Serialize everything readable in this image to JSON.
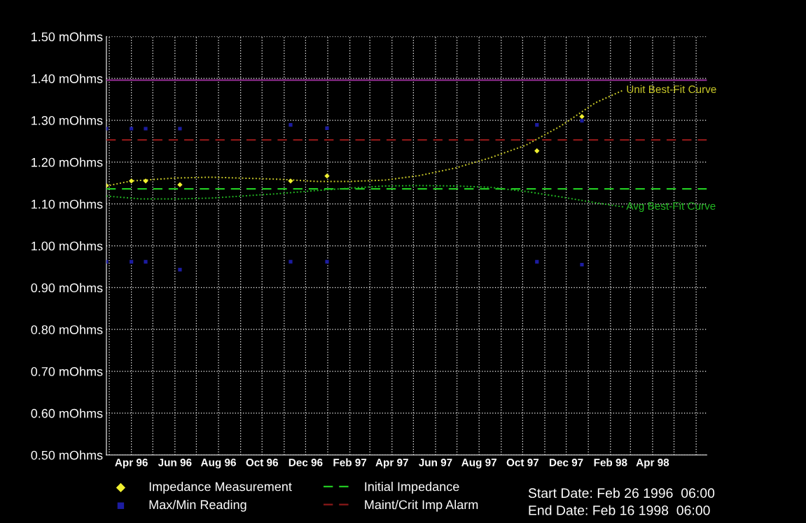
{
  "chart_data": {
    "type": "scatter",
    "xlim": [
      "1996-02-26",
      "1998-06-16"
    ],
    "xticks": [
      {
        "value": "1996-03-01",
        "label": null
      },
      {
        "value": "1996-04-01",
        "label": "Apr 96"
      },
      {
        "value": "1996-05-01",
        "label": null
      },
      {
        "value": "1996-06-01",
        "label": "Jun 96"
      },
      {
        "value": "1996-07-01",
        "label": null
      },
      {
        "value": "1996-08-01",
        "label": "Aug 96"
      },
      {
        "value": "1996-09-01",
        "label": null
      },
      {
        "value": "1996-10-01",
        "label": "Oct 96"
      },
      {
        "value": "1996-11-01",
        "label": null
      },
      {
        "value": "1996-12-01",
        "label": "Dec 96"
      },
      {
        "value": "1997-01-01",
        "label": null
      },
      {
        "value": "1997-02-01",
        "label": "Feb 97"
      },
      {
        "value": "1997-03-01",
        "label": null
      },
      {
        "value": "1997-04-01",
        "label": "Apr 97"
      },
      {
        "value": "1997-05-01",
        "label": null
      },
      {
        "value": "1997-06-01",
        "label": "Jun 97"
      },
      {
        "value": "1997-07-01",
        "label": null
      },
      {
        "value": "1997-08-01",
        "label": "Aug 97"
      },
      {
        "value": "1997-09-01",
        "label": null
      },
      {
        "value": "1997-10-01",
        "label": "Oct 97"
      },
      {
        "value": "1997-11-01",
        "label": null
      },
      {
        "value": "1997-12-01",
        "label": "Dec 97"
      },
      {
        "value": "1998-01-01",
        "label": null
      },
      {
        "value": "1998-02-01",
        "label": "Feb 98"
      },
      {
        "value": "1998-03-01",
        "label": null
      },
      {
        "value": "1998-04-01",
        "label": "Apr 98"
      },
      {
        "value": "1998-05-01",
        "label": null
      },
      {
        "value": "1998-06-01",
        "label": null
      }
    ],
    "ylim": [
      0.5,
      1.5
    ],
    "yticks": [
      {
        "value": 0.5,
        "label": "0.50 mOhms"
      },
      {
        "value": 0.6,
        "label": "0.60 mOhms"
      },
      {
        "value": 0.7,
        "label": "0.70 mOhms"
      },
      {
        "value": 0.8,
        "label": "0.80 mOhms"
      },
      {
        "value": 0.9,
        "label": "0.90 mOhms"
      },
      {
        "value": 1.0,
        "label": "1.00 mOhms"
      },
      {
        "value": 1.1,
        "label": "1.10 mOhms"
      },
      {
        "value": 1.2,
        "label": "1.20 mOhms"
      },
      {
        "value": 1.3,
        "label": "1.30 mOhms"
      },
      {
        "value": 1.4,
        "label": "1.40 mOhms"
      },
      {
        "value": 1.5,
        "label": "1.50 mOhms"
      }
    ],
    "grid": true,
    "legend": "bottom",
    "series": [
      {
        "name": "Impedance Measurement",
        "marker": "diamond",
        "color": "#f0f030",
        "x": [
          "1996-02-26",
          "1996-04-01",
          "1996-04-21",
          "1996-06-08",
          "1996-11-10",
          "1996-12-31",
          "1997-10-21",
          "1997-12-23"
        ],
        "values": [
          1.144,
          1.155,
          1.155,
          1.146,
          1.155,
          1.167,
          1.227,
          1.309
        ]
      },
      {
        "name": "Max/Min Reading",
        "marker": "square",
        "color": "#1c1ca0",
        "x": [
          "1996-02-26",
          "1996-04-01",
          "1996-04-21",
          "1996-06-08",
          "1996-11-10",
          "1996-12-31",
          "1997-10-21",
          "1997-12-23",
          "1996-02-26",
          "1996-04-01",
          "1996-04-21",
          "1996-06-08",
          "1996-11-10",
          "1996-12-31",
          "1997-10-21",
          "1997-12-23"
        ],
        "values": [
          1.28,
          1.28,
          1.28,
          1.28,
          1.289,
          1.281,
          1.289,
          1.299,
          0.962,
          0.962,
          0.962,
          0.943,
          0.962,
          0.962,
          0.962,
          0.955
        ]
      },
      {
        "name": "Unit Best-Fit Curve",
        "type": "line",
        "line_style": "dotted",
        "color": "#c8c828",
        "x": [
          "1996-02-26",
          "1996-04-01",
          "1996-06-02",
          "1996-07-21",
          "1996-10-27",
          "1996-12-15",
          "1997-02-03",
          "1997-03-22",
          "1997-05-10",
          "1997-06-29",
          "1997-08-16",
          "1997-10-05",
          "1997-11-23",
          "1998-01-11",
          "1998-02-19"
        ],
        "values": [
          1.143,
          1.155,
          1.162,
          1.164,
          1.159,
          1.154,
          1.154,
          1.157,
          1.168,
          1.186,
          1.21,
          1.24,
          1.286,
          1.342,
          1.372
        ]
      },
      {
        "name": "Avg Best-Fit Curve",
        "type": "line",
        "line_style": "dotted",
        "color": "#22b822",
        "x": [
          "1996-02-26",
          "1996-04-14",
          "1996-06-02",
          "1996-07-21",
          "1996-10-27",
          "1996-12-15",
          "1997-02-03",
          "1997-03-22",
          "1997-05-10",
          "1997-06-29",
          "1997-08-16",
          "1997-10-05",
          "1997-11-23",
          "1998-01-11",
          "1998-02-19"
        ],
        "values": [
          1.119,
          1.112,
          1.112,
          1.114,
          1.125,
          1.132,
          1.138,
          1.143,
          1.144,
          1.143,
          1.14,
          1.13,
          1.117,
          1.103,
          1.093
        ]
      }
    ],
    "ref_lines": [
      {
        "axis": "y",
        "value": 1.136,
        "label": "Initial Impedance",
        "color": "#22c822",
        "line_style": "dashed"
      },
      {
        "axis": "y",
        "value": 1.253,
        "label": "Maint/Crit Imp Alarm",
        "color": "#8a1818",
        "line_style": "dashed"
      },
      {
        "axis": "y",
        "value": 1.396,
        "color": "#8a2a8a",
        "line_style": "solid"
      }
    ],
    "annotations": [
      "Start Date: Feb 26 1996  06:00",
      "End Date: Feb 16 1998  06:00"
    ]
  }
}
